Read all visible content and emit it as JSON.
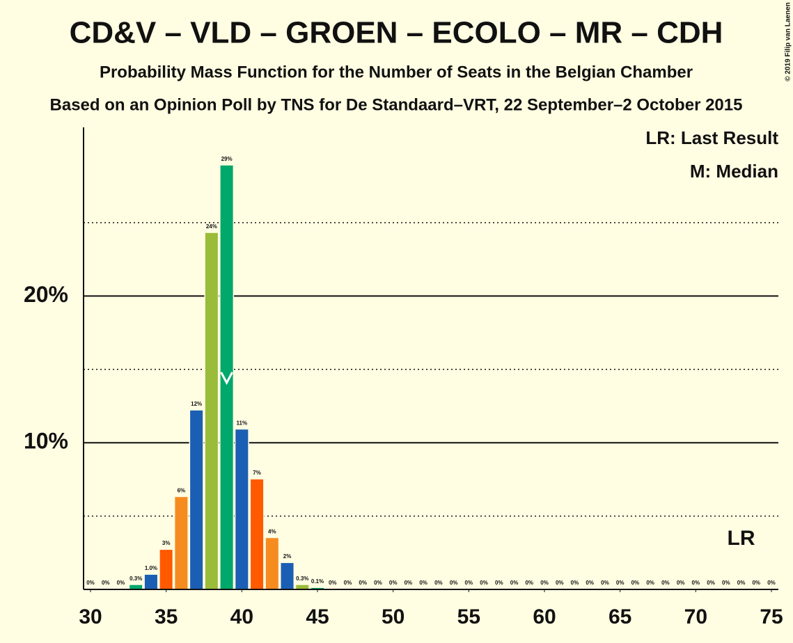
{
  "chart_data": {
    "type": "bar",
    "title": "CD&V – VLD – GROEN – ECOLO – MR – CDH",
    "subtitle": "Probability Mass Function for the Number of Seats in the Belgian Chamber",
    "subtitle2": "Based on an Opinion Poll by TNS for De Standaard–VRT, 22 September–2 October 2015",
    "copyright": "© 2019 Filip van Laenen",
    "legend": [
      "LR: Last Result",
      "M: Median"
    ],
    "x": [
      30,
      31,
      32,
      33,
      34,
      35,
      36,
      37,
      38,
      39,
      40,
      41,
      42,
      43,
      44,
      45,
      46,
      47,
      48,
      49,
      50,
      51,
      52,
      53,
      54,
      55,
      56,
      57,
      58,
      59,
      60,
      61,
      62,
      63,
      64,
      65,
      66,
      67,
      68,
      69,
      70,
      71,
      72,
      73,
      74,
      75
    ],
    "values": [
      0,
      0,
      0,
      0.3,
      1.0,
      2.7,
      6.3,
      12.2,
      24.3,
      28.9,
      10.9,
      7.5,
      3.5,
      1.8,
      0.3,
      0.1,
      0,
      0,
      0,
      0,
      0,
      0,
      0,
      0,
      0,
      0,
      0,
      0,
      0,
      0,
      0,
      0,
      0,
      0,
      0,
      0,
      0,
      0,
      0,
      0,
      0,
      0,
      0,
      0,
      0,
      0
    ],
    "value_labels": [
      "0%",
      "0%",
      "0%",
      "0.3%",
      "1.0%",
      "3%",
      "6%",
      "12%",
      "24%",
      "29%",
      "11%",
      "7%",
      "4%",
      "2%",
      "0.3%",
      "0.1%",
      "0%",
      "0%",
      "0%",
      "0%",
      "0%",
      "0%",
      "0%",
      "0%",
      "0%",
      "0%",
      "0%",
      "0%",
      "0%",
      "0%",
      "0%",
      "0%",
      "0%",
      "0%",
      "0%",
      "0%",
      "0%",
      "0%",
      "0%",
      "0%",
      "0%",
      "0%",
      "0%",
      "0%",
      "0%",
      "0%"
    ],
    "colors": [
      "#f68b1f",
      "#1b5fb4",
      "#9bbb3a",
      "#00a86b",
      "#1b5fb4",
      "#ff5a00",
      "#f68b1f",
      "#1b5fb4",
      "#9bbb3a",
      "#00a86b",
      "#1b5fb4",
      "#ff5a00",
      "#f68b1f",
      "#1b5fb4",
      "#9bbb3a",
      "#00a86b",
      "#1b5fb4",
      "#ff5a00",
      "#f68b1f",
      "#1b5fb4",
      "#9bbb3a",
      "#00a86b",
      "#1b5fb4",
      "#ff5a00",
      "#f68b1f",
      "#1b5fb4",
      "#9bbb3a",
      "#00a86b",
      "#1b5fb4",
      "#ff5a00",
      "#f68b1f",
      "#1b5fb4",
      "#9bbb3a",
      "#00a86b",
      "#1b5fb4",
      "#ff5a00",
      "#f68b1f",
      "#1b5fb4",
      "#9bbb3a",
      "#00a86b",
      "#1b5fb4",
      "#ff5a00",
      "#f68b1f",
      "#1b5fb4",
      "#9bbb3a",
      "#00a86b"
    ],
    "xlim": [
      30,
      75
    ],
    "xticks": [
      30,
      35,
      40,
      45,
      50,
      55,
      60,
      65,
      70,
      75
    ],
    "ylim": [
      0,
      31.5
    ],
    "yticks": [
      {
        "value": 10,
        "label": "10%"
      },
      {
        "value": 20,
        "label": "20%"
      }
    ],
    "minor_yticks": [
      5,
      15,
      25
    ],
    "median": 39,
    "last_result": 73,
    "last_result_label": "LR"
  }
}
